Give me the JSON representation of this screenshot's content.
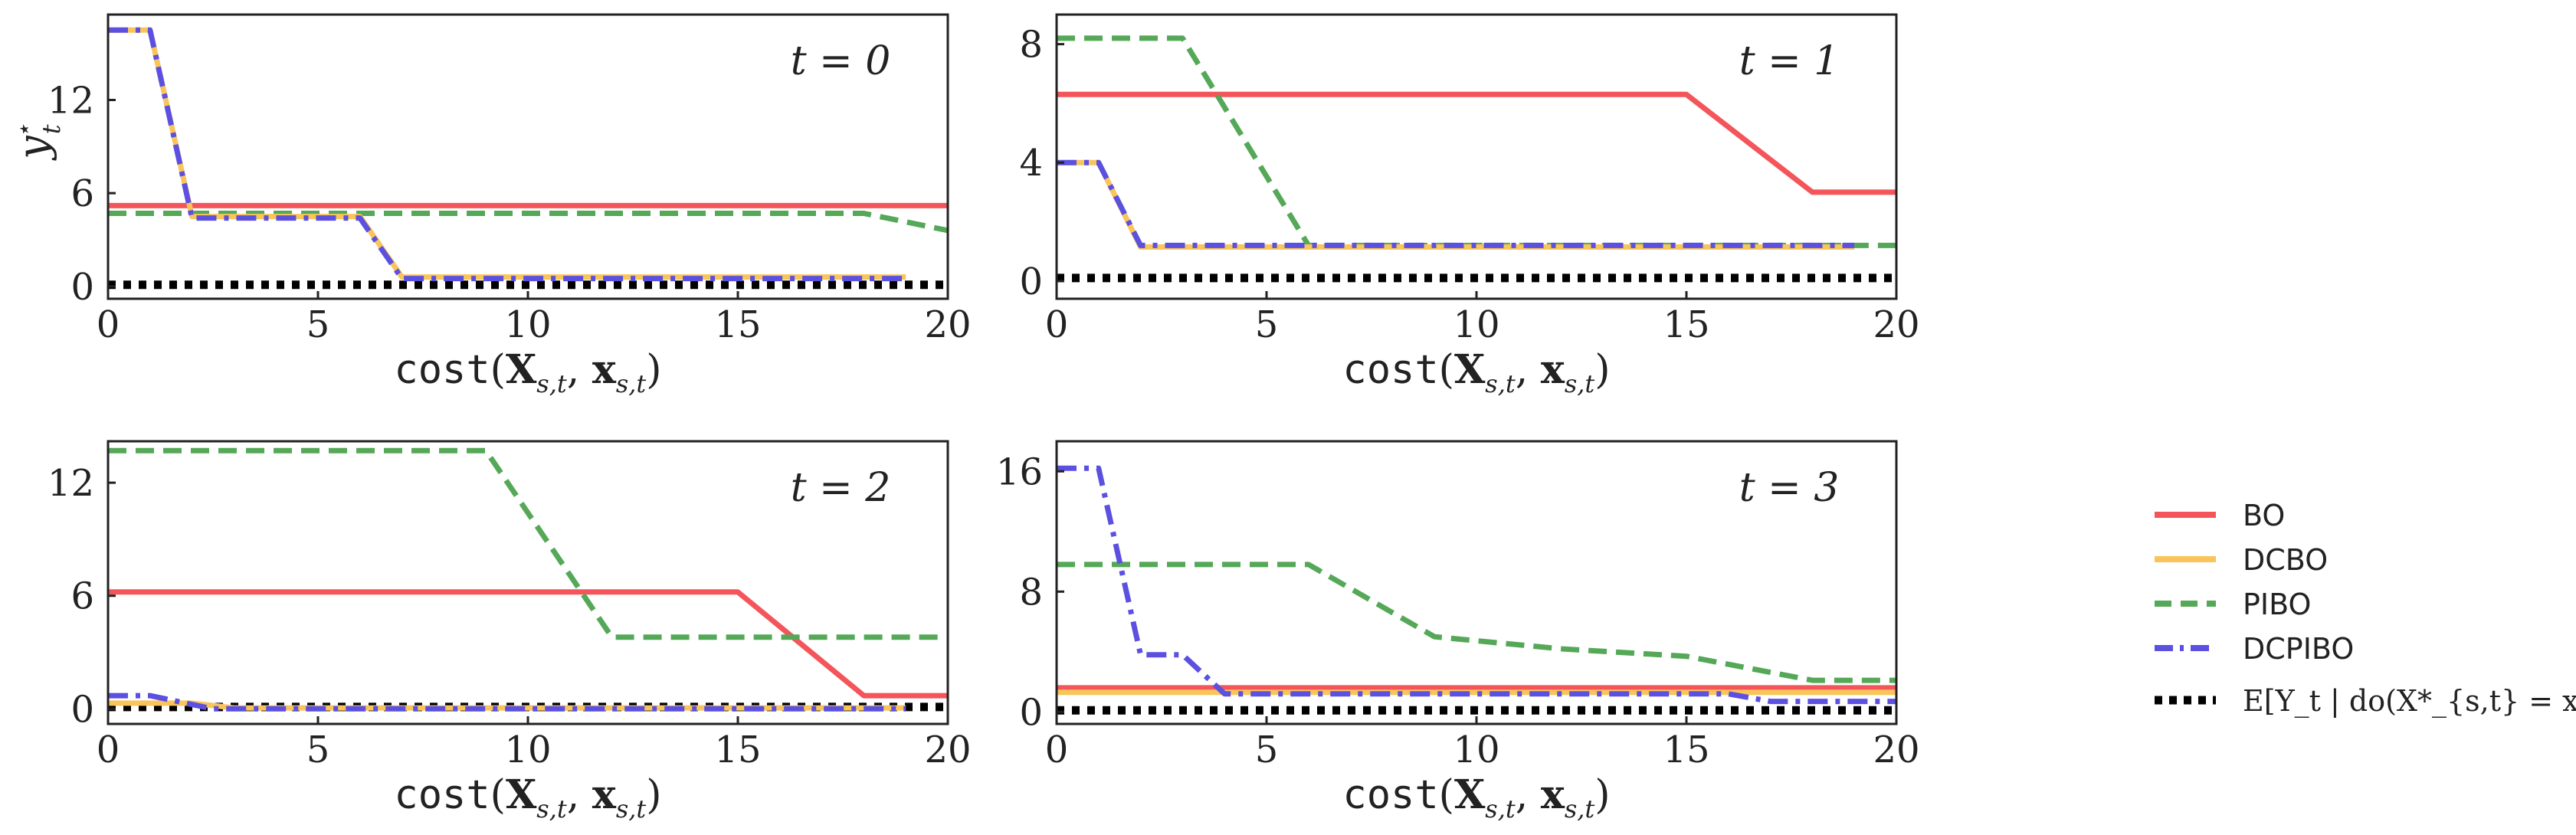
{
  "legend": {
    "labels": [
      "BO",
      "DCBO",
      "PIBO",
      "DCPIBO"
    ],
    "expectation_label": "E[Y_t | do(X*_{s,t} = x*_{s,t})]"
  },
  "axis_text": {
    "ylabel": "y",
    "ylabel_sup": "⋆",
    "ylabel_sub": "t",
    "xlabel_func": "cost(",
    "xlabel_X": "X",
    "xlabel_sub": "s,t",
    "xlabel_sep": ", ",
    "xlabel_x": "x",
    "xlabel_end": ")"
  },
  "colors": {
    "BO": "#f4555a",
    "DCBO": "#f9c45a",
    "PIBO": "#55a857",
    "DCPIBO": "#5b50e0",
    "Expectation": "#000000"
  },
  "chart_data": [
    {
      "type": "line",
      "title": "t = 0",
      "xlabel": "cost(X_{s,t}, x_{s,t})",
      "ylabel": "y*_t",
      "xlim": [
        0,
        20
      ],
      "ylim": [
        -0.8,
        17.5
      ],
      "xticks": [
        0,
        5,
        10,
        15,
        20
      ],
      "yticks": [
        0,
        6,
        12
      ],
      "series": [
        {
          "name": "BO",
          "x": [
            0,
            20
          ],
          "y": [
            5.2,
            5.2
          ]
        },
        {
          "name": "DCBO",
          "x": [
            0,
            1,
            2,
            6,
            7,
            19
          ],
          "y": [
            16.5,
            16.5,
            4.5,
            4.5,
            0.6,
            0.6
          ]
        },
        {
          "name": "PIBO",
          "x": [
            0,
            18,
            20
          ],
          "y": [
            4.7,
            4.7,
            3.6
          ]
        },
        {
          "name": "DCPIBO",
          "x": [
            0,
            1,
            2,
            6,
            7,
            19
          ],
          "y": [
            16.5,
            16.5,
            4.4,
            4.4,
            0.5,
            0.5
          ]
        },
        {
          "name": "Expectation",
          "x": [
            0,
            20
          ],
          "y": [
            0.1,
            0.1
          ]
        }
      ]
    },
    {
      "type": "line",
      "title": "t = 1",
      "xlabel": "cost(X_{s,t}, x_{s,t})",
      "ylabel": "",
      "xlim": [
        0,
        20
      ],
      "ylim": [
        -0.6,
        9.0
      ],
      "xticks": [
        0,
        5,
        10,
        15,
        20
      ],
      "yticks": [
        0,
        4,
        8
      ],
      "series": [
        {
          "name": "BO",
          "x": [
            0,
            15,
            18,
            20
          ],
          "y": [
            6.3,
            6.3,
            3.0,
            3.0
          ]
        },
        {
          "name": "DCBO",
          "x": [
            0,
            1,
            2,
            19
          ],
          "y": [
            4.0,
            4.0,
            1.15,
            1.15
          ]
        },
        {
          "name": "PIBO",
          "x": [
            0,
            3,
            6,
            20
          ],
          "y": [
            8.2,
            8.2,
            1.2,
            1.2
          ]
        },
        {
          "name": "DCPIBO",
          "x": [
            0,
            1,
            2,
            19
          ],
          "y": [
            4.0,
            4.0,
            1.2,
            1.2
          ]
        },
        {
          "name": "Expectation",
          "x": [
            0,
            20
          ],
          "y": [
            0.1,
            0.1
          ]
        }
      ]
    },
    {
      "type": "line",
      "title": "t = 2",
      "xlabel": "cost(X_{s,t}, x_{s,t})",
      "ylabel": "",
      "xlim": [
        0,
        20
      ],
      "ylim": [
        -0.8,
        14.2
      ],
      "xticks": [
        0,
        5,
        10,
        15,
        20
      ],
      "yticks": [
        0,
        6,
        12
      ],
      "series": [
        {
          "name": "BO",
          "x": [
            0,
            15,
            18,
            20
          ],
          "y": [
            6.2,
            6.2,
            0.7,
            0.7
          ]
        },
        {
          "name": "DCBO",
          "x": [
            0,
            2,
            3,
            19
          ],
          "y": [
            0.3,
            0.3,
            0.05,
            0.05
          ]
        },
        {
          "name": "PIBO",
          "x": [
            0,
            9,
            12,
            20
          ],
          "y": [
            13.7,
            13.7,
            3.8,
            3.8
          ]
        },
        {
          "name": "DCPIBO",
          "x": [
            0,
            1,
            2.5,
            19
          ],
          "y": [
            0.7,
            0.7,
            0.0,
            0.0
          ]
        },
        {
          "name": "Expectation",
          "x": [
            0,
            20
          ],
          "y": [
            0.1,
            0.1
          ]
        }
      ]
    },
    {
      "type": "line",
      "title": "t = 3",
      "xlabel": "cost(X_{s,t}, x_{s,t})",
      "ylabel": "",
      "xlim": [
        0,
        20
      ],
      "ylim": [
        -0.8,
        18.0
      ],
      "xticks": [
        0,
        5,
        10,
        15,
        20
      ],
      "yticks": [
        0,
        8,
        16
      ],
      "series": [
        {
          "name": "BO",
          "x": [
            0,
            20
          ],
          "y": [
            1.6,
            1.6
          ]
        },
        {
          "name": "DCBO",
          "x": [
            0,
            20
          ],
          "y": [
            1.3,
            1.3
          ]
        },
        {
          "name": "PIBO",
          "x": [
            0,
            6,
            9,
            12,
            15,
            18,
            20
          ],
          "y": [
            9.8,
            9.8,
            5.0,
            4.2,
            3.7,
            2.1,
            2.1
          ]
        },
        {
          "name": "DCPIBO",
          "x": [
            0,
            1,
            2,
            3,
            4,
            16,
            17,
            20
          ],
          "y": [
            16.2,
            16.2,
            3.8,
            3.8,
            1.2,
            1.2,
            0.7,
            0.7
          ]
        },
        {
          "name": "Expectation",
          "x": [
            0,
            20
          ],
          "y": [
            0.1,
            0.1
          ]
        }
      ]
    }
  ]
}
